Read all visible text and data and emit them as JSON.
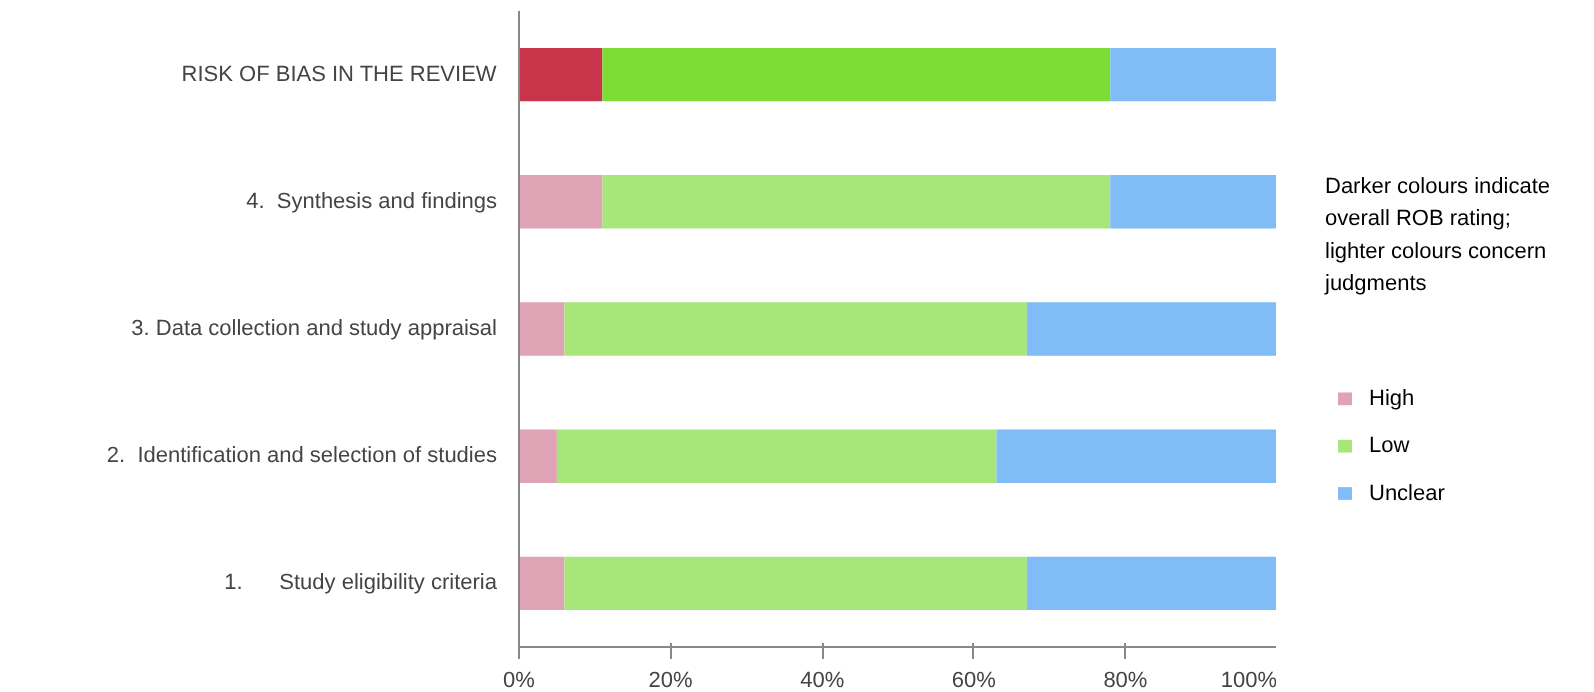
{
  "chart_data": {
    "type": "bar",
    "orientation": "horizontal",
    "stacked": true,
    "categories": [
      "RISK OF BIAS IN THE REVIEW",
      "4.  Synthesis and findings",
      "3. Data collection and study appraisal",
      "2.  Identification and selection of studies",
      "1.      Study eligibility criteria"
    ],
    "series": [
      {
        "name": "High",
        "color": "#dea4b6",
        "colors": [
          "#c8344a",
          "#dea4b6",
          "#dea4b6",
          "#dea4b6",
          "#dea4b6"
        ],
        "values": [
          11,
          11,
          6,
          5,
          6
        ]
      },
      {
        "name": "Low",
        "color": "#a9e67a",
        "colors": [
          "#7ddd35",
          "#a9e67a",
          "#a9e67a",
          "#a9e67a",
          "#a9e67a"
        ],
        "values": [
          67,
          67,
          61,
          58,
          61
        ]
      },
      {
        "name": "Unclear",
        "color": "#80bdf6",
        "colors": [
          "#80bdf6",
          "#80bdf6",
          "#80bdf6",
          "#80bdf6",
          "#80bdf6"
        ],
        "values": [
          22,
          22,
          33,
          37,
          33
        ]
      }
    ],
    "xlim": [
      0,
      100
    ],
    "xticks": [
      {
        "value": 0,
        "label": "0%"
      },
      {
        "value": 20,
        "label": "20%"
      },
      {
        "value": 40,
        "label": "40%"
      },
      {
        "value": 60,
        "label": "60%"
      },
      {
        "value": 80,
        "label": "80%"
      },
      {
        "value": 100,
        "label": "100%"
      }
    ],
    "annotations": [
      "Darker colours indicate overall ROB rating;  lighter colours concern judgments"
    ],
    "legend": "right",
    "grid": false
  }
}
